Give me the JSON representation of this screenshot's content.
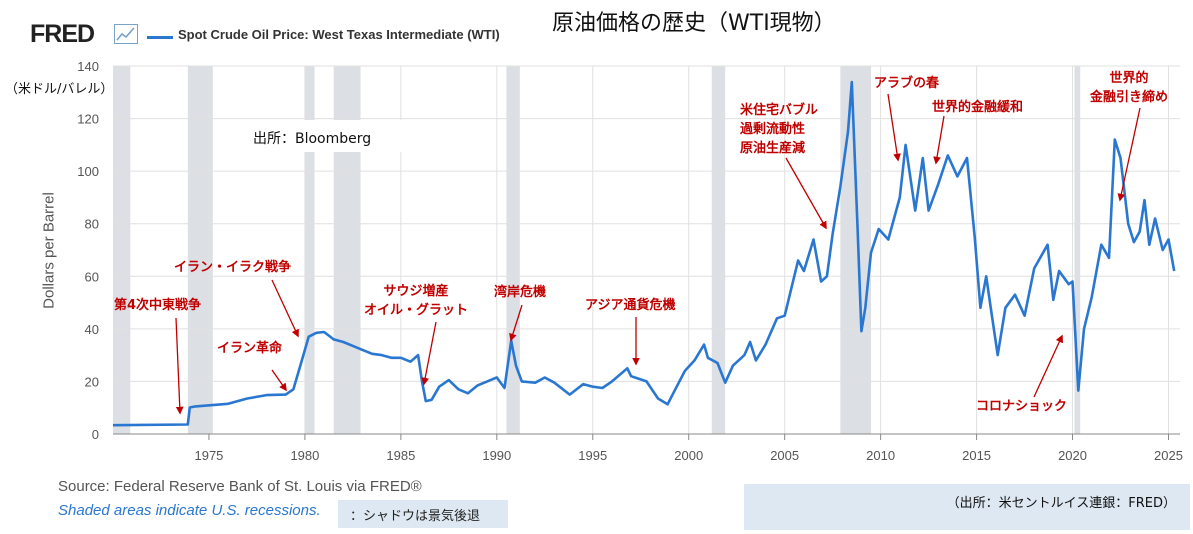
{
  "header": {
    "logo": "FRED",
    "legend_label": "Spot Crude Oil Price: West Texas Intermediate (WTI)",
    "jp_title": "原油価格の歴史（WTI現物）",
    "unit": "（米ドル/バレル）",
    "bloomberg_source": "出所：Bloomberg"
  },
  "footer": {
    "source": "Source: Federal Reserve Bank of St. Louis via FRED®",
    "shaded_note": "Shaded areas indicate U.S. recessions.",
    "shaded_note_jp": "：シャドウは景気後退",
    "source_jp": "（出所：米セントルイス連銀：FRED）"
  },
  "annotations": [
    {
      "text": "第4次中東戦争"
    },
    {
      "text": "イラン・イラク戦争"
    },
    {
      "text": "イラン革命"
    },
    {
      "text": "サウジ増産\nオイル・グラット"
    },
    {
      "text": "湾岸危機"
    },
    {
      "text": "アジア通貨危機"
    },
    {
      "text": "米住宅バブル\n過剰流動性\n原油生産減"
    },
    {
      "text": "アラブの春"
    },
    {
      "text": "世界的金融緩和"
    },
    {
      "text": "世界的\n金融引き締め"
    },
    {
      "text": "コロナショック"
    }
  ],
  "colors": {
    "line": "#2a77d1",
    "recession": "#dcdfe4",
    "annotation": "#c00000",
    "grid": "#e0e0e0"
  },
  "chart_data": {
    "type": "line",
    "ylabel": "Dollars per Barrel",
    "xlim": [
      1970.0,
      2025.6
    ],
    "ylim": [
      0,
      140
    ],
    "x_ticks": [
      1975,
      1980,
      1985,
      1990,
      1995,
      2000,
      2005,
      2010,
      2015,
      2020,
      2025
    ],
    "y_ticks": [
      0,
      20,
      40,
      60,
      80,
      100,
      120,
      140
    ],
    "recessions": [
      [
        1970.0,
        1970.9
      ],
      [
        1973.9,
        1975.2
      ],
      [
        1980.0,
        1980.5
      ],
      [
        1981.5,
        1982.9
      ],
      [
        1990.5,
        1991.2
      ],
      [
        2001.2,
        2001.9
      ],
      [
        2007.9,
        2009.5
      ],
      [
        2020.1,
        2020.4
      ]
    ],
    "series": [
      {
        "name": "Spot Crude Oil Price: West Texas Intermediate (WTI)",
        "points": [
          [
            1970.0,
            3.35
          ],
          [
            1973.9,
            3.6
          ],
          [
            1974.0,
            10.1
          ],
          [
            1974.3,
            10.5
          ],
          [
            1976.0,
            11.5
          ],
          [
            1977.0,
            13.5
          ],
          [
            1978.0,
            14.8
          ],
          [
            1979.0,
            15.0
          ],
          [
            1979.4,
            17
          ],
          [
            1979.8,
            27
          ],
          [
            1980.2,
            37
          ],
          [
            1980.6,
            38.5
          ],
          [
            1981.0,
            38.8
          ],
          [
            1981.5,
            36
          ],
          [
            1982.0,
            35
          ],
          [
            1982.5,
            33.5
          ],
          [
            1983.0,
            32
          ],
          [
            1983.5,
            30.5
          ],
          [
            1984.0,
            30
          ],
          [
            1984.5,
            29
          ],
          [
            1985.0,
            29
          ],
          [
            1985.5,
            27.5
          ],
          [
            1985.9,
            30
          ],
          [
            1986.1,
            20
          ],
          [
            1986.3,
            12.5
          ],
          [
            1986.6,
            13
          ],
          [
            1987.0,
            18
          ],
          [
            1987.5,
            20.5
          ],
          [
            1988.0,
            17
          ],
          [
            1988.5,
            15.5
          ],
          [
            1989.0,
            18.5
          ],
          [
            1989.5,
            20
          ],
          [
            1990.0,
            21.5
          ],
          [
            1990.4,
            17.5
          ],
          [
            1990.75,
            35.5
          ],
          [
            1991.0,
            26
          ],
          [
            1991.3,
            20
          ],
          [
            1992.0,
            19.5
          ],
          [
            1992.5,
            21.5
          ],
          [
            1993.0,
            19.5
          ],
          [
            1993.8,
            15
          ],
          [
            1994.5,
            19
          ],
          [
            1995.0,
            18
          ],
          [
            1995.5,
            17.5
          ],
          [
            1996.0,
            20
          ],
          [
            1996.8,
            25
          ],
          [
            1997.0,
            22
          ],
          [
            1997.8,
            20
          ],
          [
            1998.4,
            13.5
          ],
          [
            1998.9,
            11.3
          ],
          [
            1999.3,
            17
          ],
          [
            1999.8,
            24
          ],
          [
            2000.3,
            28
          ],
          [
            2000.8,
            34
          ],
          [
            2001.0,
            29
          ],
          [
            2001.5,
            27
          ],
          [
            2001.9,
            19.5
          ],
          [
            2002.3,
            26
          ],
          [
            2002.9,
            30
          ],
          [
            2003.2,
            35
          ],
          [
            2003.5,
            28
          ],
          [
            2004.0,
            34
          ],
          [
            2004.6,
            44
          ],
          [
            2005.0,
            45
          ],
          [
            2005.7,
            66
          ],
          [
            2006.0,
            62
          ],
          [
            2006.5,
            74
          ],
          [
            2006.9,
            58
          ],
          [
            2007.2,
            60
          ],
          [
            2007.5,
            76
          ],
          [
            2007.9,
            94
          ],
          [
            2008.3,
            115
          ],
          [
            2008.5,
            133.9
          ],
          [
            2008.8,
            78
          ],
          [
            2009.0,
            39.1
          ],
          [
            2009.2,
            48
          ],
          [
            2009.5,
            69
          ],
          [
            2009.9,
            78
          ],
          [
            2010.4,
            74
          ],
          [
            2011.0,
            90
          ],
          [
            2011.3,
            110
          ],
          [
            2011.8,
            85
          ],
          [
            2012.2,
            105
          ],
          [
            2012.5,
            85
          ],
          [
            2013.0,
            95
          ],
          [
            2013.5,
            106
          ],
          [
            2014.0,
            98
          ],
          [
            2014.5,
            105
          ],
          [
            2014.9,
            75
          ],
          [
            2015.2,
            48
          ],
          [
            2015.5,
            60
          ],
          [
            2015.8,
            45
          ],
          [
            2016.1,
            30
          ],
          [
            2016.5,
            48
          ],
          [
            2017.0,
            53
          ],
          [
            2017.5,
            45
          ],
          [
            2018.0,
            63
          ],
          [
            2018.7,
            72
          ],
          [
            2019.0,
            51
          ],
          [
            2019.3,
            62
          ],
          [
            2019.8,
            57
          ],
          [
            2020.0,
            58
          ],
          [
            2020.3,
            16.5
          ],
          [
            2020.6,
            40
          ],
          [
            2021.0,
            52
          ],
          [
            2021.5,
            72
          ],
          [
            2021.9,
            67
          ],
          [
            2022.2,
            112
          ],
          [
            2022.5,
            105
          ],
          [
            2022.9,
            80
          ],
          [
            2023.2,
            73
          ],
          [
            2023.5,
            77
          ],
          [
            2023.75,
            89
          ],
          [
            2024.0,
            72
          ],
          [
            2024.3,
            82
          ],
          [
            2024.7,
            70
          ],
          [
            2025.0,
            74
          ],
          [
            2025.3,
            62
          ]
        ]
      }
    ]
  }
}
